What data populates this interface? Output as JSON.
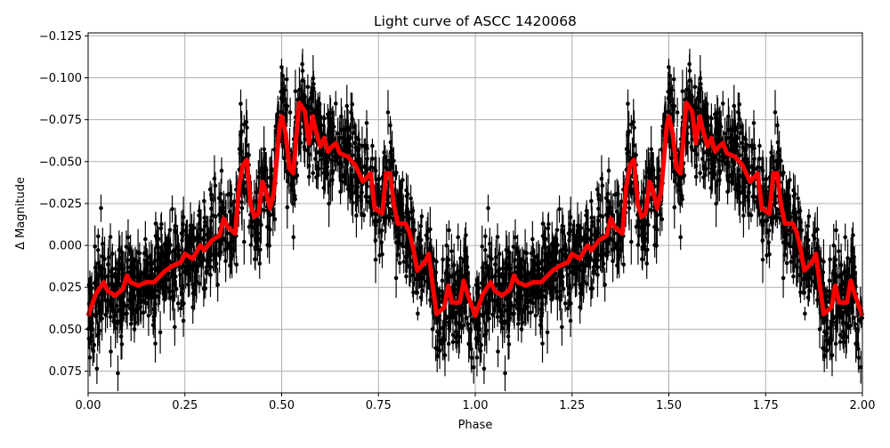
{
  "chart_data": {
    "type": "scatter",
    "title": "Light curve of ASCC 1420068",
    "xlabel": "Phase",
    "ylabel": "Δ Magnitude",
    "xlim": [
      0.0,
      2.0
    ],
    "ylim": [
      0.088,
      -0.1268
    ],
    "y_inverted": true,
    "grid": true,
    "xticks": [
      "0.00",
      "0.25",
      "0.50",
      "0.75",
      "1.00",
      "1.25",
      "1.50",
      "1.75",
      "2.00"
    ],
    "yticks": [
      "−0.125",
      "−0.100",
      "−0.075",
      "−0.050",
      "−0.025",
      "0.000",
      "0.025",
      "0.050",
      "0.075"
    ],
    "colors": {
      "observations": "#000000",
      "model": "#ff0000",
      "grid": "#b0b0b0"
    },
    "model_period_phase": [
      0,
      0.02,
      0.04,
      0.05,
      0.07,
      0.09,
      0.1,
      0.11,
      0.13,
      0.15,
      0.17,
      0.2,
      0.22,
      0.24,
      0.25,
      0.27,
      0.29,
      0.3,
      0.32,
      0.34,
      0.35,
      0.36,
      0.38,
      0.39,
      0.4,
      0.41,
      0.42,
      0.43,
      0.44,
      0.45,
      0.46,
      0.47,
      0.48,
      0.495,
      0.5,
      0.51,
      0.52,
      0.53,
      0.545,
      0.56,
      0.57,
      0.58,
      0.59,
      0.6,
      0.61,
      0.62,
      0.63,
      0.64,
      0.65,
      0.67,
      0.69,
      0.71,
      0.73,
      0.74,
      0.76,
      0.77,
      0.78,
      0.79,
      0.8,
      0.82,
      0.83,
      0.84,
      0.85,
      0.87,
      0.88,
      0.89,
      0.9,
      0.92,
      0.93,
      0.94,
      0.96,
      0.97,
      0.98,
      1.0
    ],
    "model_period_mag": [
      0.042,
      0.029,
      0.022,
      0.027,
      0.03,
      0.026,
      0.018,
      0.022,
      0.024,
      0.022,
      0.022,
      0.015,
      0.012,
      0.01,
      0.005,
      0.008,
      0.0,
      0.003,
      -0.003,
      -0.006,
      -0.016,
      -0.011,
      -0.007,
      -0.035,
      -0.048,
      -0.051,
      -0.024,
      -0.017,
      -0.019,
      -0.038,
      -0.032,
      -0.022,
      -0.032,
      -0.072,
      -0.077,
      -0.067,
      -0.046,
      -0.043,
      -0.085,
      -0.08,
      -0.061,
      -0.077,
      -0.067,
      -0.059,
      -0.064,
      -0.056,
      -0.059,
      -0.061,
      -0.055,
      -0.053,
      -0.048,
      -0.038,
      -0.043,
      -0.022,
      -0.019,
      -0.043,
      -0.043,
      -0.024,
      -0.013,
      -0.013,
      -0.008,
      0.002,
      0.015,
      0.01,
      0.005,
      0.024,
      0.041,
      0.037,
      0.024,
      0.034,
      0.034,
      0.021,
      0.029,
      0.042
    ]
  }
}
